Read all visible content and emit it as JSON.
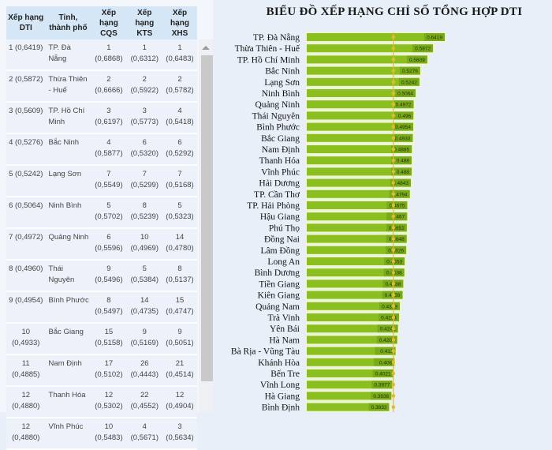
{
  "table": {
    "headers": [
      "Xếp hạng DTI",
      "Tỉnh, thành phố",
      "Xếp hạng CQS",
      "Xếp hạng KTS",
      "Xếp hạng XHS"
    ],
    "rows": [
      [
        "1 (0,6419)",
        "TP. Đà Nẵng",
        "1 (0,6868)",
        "1 (0,6312)",
        "1 (0,6483)"
      ],
      [
        "2 (0,5872)",
        "Thừa Thiên - Huế",
        "2 (0,6666)",
        "2 (0,5922)",
        "2 (0,5782)"
      ],
      [
        "3 (0,5609)",
        "TP. Hồ Chí Minh",
        "3 (0,6197)",
        "3 (0,5773)",
        "4 (0,5418)"
      ],
      [
        "4 (0,5276)",
        "Bắc Ninh",
        "4 (0,5877)",
        "6 (0,5320)",
        "6 (0,5292)"
      ],
      [
        "5 (0,5242)",
        "Lạng Sơn",
        "7 (0,5549)",
        "7 (0,5299)",
        "7 (0,5168)"
      ],
      [
        "6 (0,5064)",
        "Ninh Bình",
        "5 (0,5702)",
        "8 (0,5239)",
        "5 (0,5323)"
      ],
      [
        "7 (0,4972)",
        "Quảng Ninh",
        "6 (0,5596)",
        "10 (0,4969)",
        "14 (0,4780)"
      ],
      [
        "8 (0,4960)",
        "Thái Nguyên",
        "9 (0,5496)",
        "5 (0,5384)",
        "8 (0,5137)"
      ],
      [
        "9 (0,4954)",
        "Bình Phước",
        "8 (0,5497)",
        "14 (0,4735)",
        "15 (0,4747)"
      ],
      [
        "10 (0,4933)",
        "Bắc Giang",
        "15 (0,5158)",
        "9 (0,5169)",
        "9 (0,5051)"
      ],
      [
        "11 (0,4885)",
        "Nam Định",
        "17 (0,5102)",
        "26 (0,4443)",
        "21 (0,4514)"
      ],
      [
        "12 (0,4880)",
        "Thanh Hóa",
        "12 (0,5302)",
        "22 (0,4552)",
        "12 (0,4904)"
      ],
      [
        "12 (0,4880)",
        "Vĩnh Phúc",
        "10 (0,5483)",
        "4 (0,5671)",
        "3 (0,5634)"
      ]
    ]
  },
  "chart_data": {
    "type": "bar",
    "orientation": "horizontal",
    "title": "BIỂU ĐỒ XẾP HẠNG CHỈ SỐ TỔNG HỢP DTI",
    "categories": [
      "TP. Đà Nẵng",
      "Thừa Thiên - Huế",
      "TP. Hồ Chí Minh",
      "Bắc Ninh",
      "Lạng Sơn",
      "Ninh Bình",
      "Quảng Ninh",
      "Thái Nguyên",
      "Bình Phước",
      "Bắc Giang",
      "Nam Định",
      "Thanh Hóa",
      "Vĩnh Phúc",
      "Hải Dương",
      "TP. Cần Thơ",
      "TP. Hải Phòng",
      "Hậu Giang",
      "Phú Thọ",
      "Đồng Nai",
      "Lâm Đồng",
      "Long An",
      "Bình Dương",
      "Tiền Giang",
      "Kiên Giang",
      "Quảng Nam",
      "Trà Vinh",
      "Yên Bái",
      "Hà Nam",
      "Bà Rịa - Vũng Tàu",
      "Khánh Hòa",
      "Bến Tre",
      "Vĩnh Long",
      "Hà Giang",
      "Bình Định"
    ],
    "values": [
      0.6419,
      0.5872,
      0.5609,
      0.5276,
      0.5242,
      0.5064,
      0.4972,
      0.496,
      0.4954,
      0.4933,
      0.4885,
      0.488,
      0.488,
      0.4843,
      0.4794,
      0.4675,
      0.467,
      0.4652,
      0.4648,
      0.4626,
      0.4553,
      0.4538,
      0.4488,
      0.4459,
      0.4329,
      0.4294,
      0.4241,
      0.4207,
      0.413,
      0.408,
      0.4021,
      0.3977,
      0.3936,
      0.3833
    ],
    "value_labels": [
      "0.6419",
      "0.5872",
      "0.5609",
      "0.5276",
      "0.5242",
      "0.5064",
      "0.4972",
      "0.496",
      "0.4954",
      "0.4933",
      "0.4885",
      "0.488",
      "0.488",
      "0.4843",
      "0.4794",
      "0.4675",
      "0.467",
      "0.4652",
      "0.4648",
      "0.4626",
      "0.4553",
      "0.4538",
      "0.4488",
      "0.4459",
      "0.4329",
      "0.4294",
      "0.4241",
      "0.4207",
      "0.413",
      "0.408",
      "0.4021",
      "0.3977",
      "0.3936",
      "0.3833"
    ],
    "reference_line": 0.403,
    "xlim": [
      0,
      1
    ],
    "grid": false,
    "legend": "none",
    "colors": {
      "bar": "#8bbf1f",
      "bar_track": "#eef7c8",
      "label_bg": "#6e9c17",
      "reference_line": "#e6b830"
    }
  }
}
